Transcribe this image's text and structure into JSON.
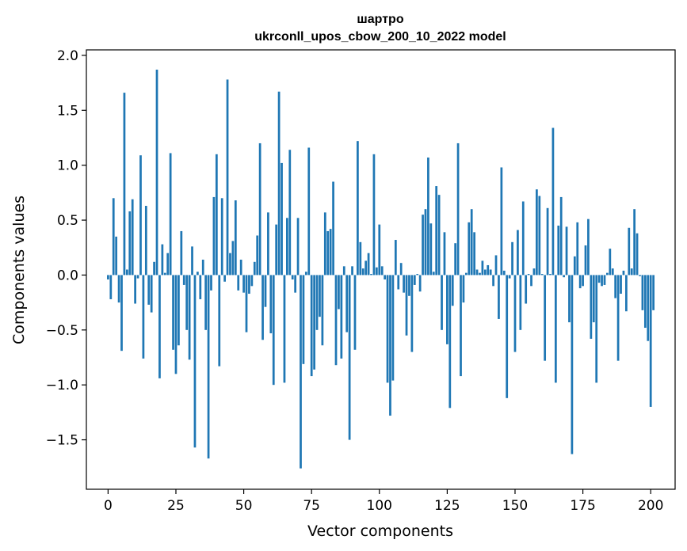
{
  "chart_data": {
    "type": "bar",
    "title_line1": "шартро",
    "title_line2": "ukrconll_upos_cbow_200_10_2022 model",
    "xlabel": "Vector components",
    "ylabel": "Components values",
    "xlim": [
      -8,
      209
    ],
    "ylim": [
      -1.95,
      2.05
    ],
    "xticks": [
      0,
      25,
      50,
      75,
      100,
      125,
      150,
      175,
      200
    ],
    "yticks": [
      -1.5,
      -1.0,
      -0.5,
      0.0,
      0.5,
      1.0,
      1.5,
      2.0
    ],
    "ytick_labels": [
      "−1.5",
      "−1.0",
      "−0.5",
      "0.0",
      "0.5",
      "1.0",
      "1.5",
      "2.0"
    ],
    "bar_color": "#1f77b4",
    "grid": false,
    "legend": "none",
    "values": [
      -0.04,
      -0.22,
      0.7,
      0.35,
      -0.25,
      -0.69,
      1.66,
      0.05,
      0.58,
      0.69,
      -0.26,
      -0.03,
      1.09,
      -0.76,
      0.63,
      -0.27,
      -0.34,
      0.12,
      1.87,
      -0.94,
      0.28,
      0.02,
      0.2,
      1.11,
      -0.68,
      -0.9,
      -0.64,
      0.4,
      -0.09,
      -0.5,
      -0.77,
      0.26,
      -1.57,
      0.03,
      -0.22,
      0.14,
      -0.5,
      -1.67,
      -0.14,
      0.71,
      1.1,
      -0.83,
      0.7,
      -0.06,
      1.78,
      0.2,
      0.31,
      0.68,
      -0.14,
      0.14,
      -0.16,
      -0.52,
      -0.17,
      -0.1,
      0.12,
      0.36,
      1.2,
      -0.59,
      -0.29,
      0.57,
      -0.53,
      -1.0,
      0.46,
      1.67,
      1.02,
      -0.98,
      0.52,
      1.14,
      -0.04,
      -0.16,
      0.52,
      -1.76,
      -0.81,
      0.03,
      1.16,
      -0.92,
      -0.86,
      -0.5,
      -0.38,
      -0.64,
      0.57,
      0.4,
      0.42,
      0.85,
      -0.82,
      -0.31,
      -0.76,
      0.08,
      -0.52,
      -1.5,
      0.08,
      -0.68,
      1.22,
      0.3,
      0.06,
      0.13,
      0.2,
      0.01,
      1.1,
      0.07,
      0.46,
      0.08,
      -0.04,
      -0.98,
      -1.28,
      -0.96,
      0.32,
      -0.13,
      0.11,
      -0.16,
      -0.55,
      -0.19,
      -0.7,
      -0.09,
      0.01,
      -0.15,
      0.55,
      0.6,
      1.07,
      0.47,
      0.03,
      0.81,
      0.73,
      -0.5,
      0.39,
      -0.63,
      -1.21,
      -0.28,
      0.29,
      1.2,
      -0.92,
      -0.25,
      0.02,
      0.48,
      0.6,
      0.39,
      0.05,
      0.02,
      0.13,
      0.05,
      0.09,
      0.05,
      -0.1,
      0.18,
      -0.4,
      0.98,
      0.04,
      -1.12,
      -0.03,
      0.3,
      -0.7,
      0.41,
      -0.5,
      0.67,
      -0.26,
      0.01,
      -0.1,
      0.06,
      0.78,
      0.72,
      0.01,
      -0.78,
      0.61,
      0.01,
      1.34,
      -0.98,
      0.45,
      0.71,
      -0.02,
      0.44,
      -0.43,
      -1.63,
      0.17,
      0.48,
      -0.12,
      -0.1,
      0.27,
      0.51,
      -0.58,
      -0.43,
      -0.98,
      -0.07,
      -0.1,
      -0.09,
      0.02,
      0.24,
      0.06,
      -0.21,
      -0.78,
      -0.17,
      0.04,
      -0.33,
      0.43,
      0.06,
      0.6,
      0.38,
      -0.01,
      -0.32,
      -0.48,
      -0.6,
      -1.2,
      -0.32
    ]
  }
}
